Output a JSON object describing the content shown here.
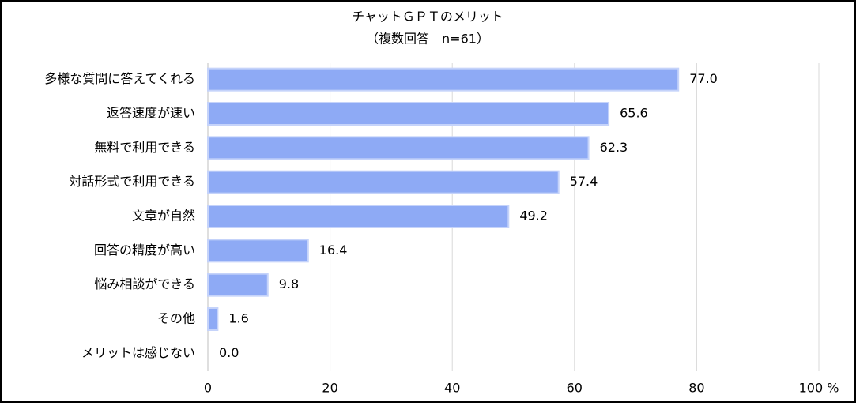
{
  "chart_data": {
    "type": "bar",
    "orientation": "horizontal",
    "title": "チャットＧＰＴのメリット",
    "subtitle": "（複数回答　n=61）",
    "categories": [
      "多様な質問に答えてくれる",
      "返答速度が速い",
      "無料で利用できる",
      "対話形式で利用できる",
      "文章が自然",
      "回答の精度が高い",
      "悩み相談ができる",
      "その他",
      "メリットは感じない"
    ],
    "values": [
      77.0,
      65.6,
      62.3,
      57.4,
      49.2,
      16.4,
      9.8,
      1.6,
      0.0
    ],
    "value_labels": [
      "77.0",
      "65.6",
      "62.3",
      "57.4",
      "49.2",
      "16.4",
      "9.8",
      "1.6",
      "0.0"
    ],
    "color": "#8eaaf5",
    "xlim": [
      0,
      100
    ],
    "xticks": [
      0,
      20,
      40,
      60,
      80,
      {
        "value": 100,
        "label": "100 %"
      }
    ],
    "grid": true
  }
}
